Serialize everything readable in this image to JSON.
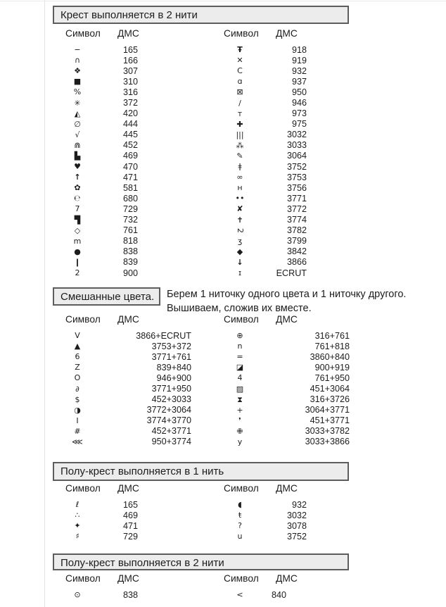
{
  "page": {
    "kind": "cross-stitch pattern color key",
    "colors": {
      "header_bg": "#ececec",
      "header_border": "#5d5d5d",
      "text": "#1c1c1c"
    }
  },
  "sections": [
    {
      "id": "cross-2-threads",
      "title": "Крест выполняется в 2 нити",
      "col_header": {
        "symbol": "Символ",
        "dmc": "ДМС"
      },
      "tables": [
        {
          "rows": [
            {
              "sym": "−",
              "dmc": "165"
            },
            {
              "sym": "∩",
              "dmc": "166"
            },
            {
              "sym": "❖",
              "dmc": "307"
            },
            {
              "sym": "■",
              "dmc": "310"
            },
            {
              "sym": "%",
              "dmc": "316"
            },
            {
              "sym": "✳",
              "dmc": "372"
            },
            {
              "sym": "◭",
              "dmc": "420"
            },
            {
              "sym": "∅",
              "dmc": "444"
            },
            {
              "sym": "√",
              "dmc": "445"
            },
            {
              "sym": "⋒",
              "dmc": "452"
            },
            {
              "sym": "▙",
              "dmc": "469"
            },
            {
              "sym": "♥",
              "dmc": "470"
            },
            {
              "sym": "↑",
              "dmc": "471",
              "b": 1
            },
            {
              "sym": "✿",
              "dmc": "581"
            },
            {
              "sym": "℮",
              "dmc": "680"
            },
            {
              "sym": "7",
              "dmc": "729"
            },
            {
              "sym": "▜",
              "dmc": "732"
            },
            {
              "sym": "◇",
              "dmc": "761"
            },
            {
              "sym": "m",
              "dmc": "818"
            },
            {
              "sym": "●",
              "dmc": "838"
            },
            {
              "sym": "❙",
              "dmc": "839"
            },
            {
              "sym": "2",
              "dmc": "900"
            }
          ]
        },
        {
          "rows": [
            {
              "sym": "Ŧ",
              "dmc": "918",
              "b": 1
            },
            {
              "sym": "✕",
              "dmc": "919"
            },
            {
              "sym": "C",
              "dmc": "932"
            },
            {
              "sym": "ɑ",
              "dmc": "937"
            },
            {
              "sym": "⊠",
              "dmc": "950"
            },
            {
              "sym": "/",
              "dmc": "946"
            },
            {
              "sym": "т",
              "dmc": "973"
            },
            {
              "sym": "✚",
              "dmc": "975"
            },
            {
              "sym": "|||",
              "dmc": "3032"
            },
            {
              "sym": "⁂",
              "dmc": "3033"
            },
            {
              "sym": "✎",
              "dmc": "3064"
            },
            {
              "sym": "ǂ",
              "dmc": "3752"
            },
            {
              "sym": "∞",
              "dmc": "3753"
            },
            {
              "sym": "н",
              "dmc": "3756"
            },
            {
              "sym": "••",
              "dmc": "3771"
            },
            {
              "sym": "✘",
              "dmc": "3772"
            },
            {
              "sym": "✝",
              "dmc": "3774",
              "b": 1
            },
            {
              "sym": "2",
              "dmc": "3782",
              "rot": 1
            },
            {
              "sym": "ʒ",
              "dmc": "3799"
            },
            {
              "sym": "◆",
              "dmc": "3842"
            },
            {
              "sym": "↓",
              "dmc": "3866",
              "b": 1
            },
            {
              "sym": "ɪ",
              "dmc": "ECRUT"
            }
          ]
        }
      ]
    },
    {
      "id": "mixed-colors",
      "title": "Смешанные цвета.",
      "note_lines": [
        "Берем 1 ниточку одного цвета и 1 ниточку другого.",
        "Вышиваем, сложив их вместе."
      ],
      "col_header": {
        "symbol": "Символ",
        "dmc": "ДМС"
      },
      "tables": [
        {
          "rows": [
            {
              "sym": "V",
              "dmc": "3866+ECRUT"
            },
            {
              "sym": "▲",
              "dmc": "3753+372"
            },
            {
              "sym": "6",
              "dmc": "3771+761"
            },
            {
              "sym": "Z",
              "dmc": "839+840"
            },
            {
              "sym": "O",
              "dmc": "946+900"
            },
            {
              "sym": "∂",
              "dmc": "3771+950"
            },
            {
              "sym": "$",
              "dmc": "452+3033"
            },
            {
              "sym": "◑",
              "dmc": "3772+3064"
            },
            {
              "sym": "I",
              "dmc": "3774+3770"
            },
            {
              "sym": "#",
              "dmc": "452+3771"
            },
            {
              "sym": "⋘",
              "dmc": "950+3774"
            }
          ]
        },
        {
          "rows": [
            {
              "sym": "⊕",
              "dmc": "316+761"
            },
            {
              "sym": "n",
              "dmc": "761+818"
            },
            {
              "sym": "=",
              "dmc": "3860+840"
            },
            {
              "sym": "◪",
              "dmc": "900+919"
            },
            {
              "sym": "4",
              "dmc": "761+950"
            },
            {
              "sym": "▨",
              "dmc": "451+3064"
            },
            {
              "sym": "⧗",
              "dmc": "316+3726"
            },
            {
              "sym": "+",
              "dmc": "3064+3771"
            },
            {
              "sym": "❜",
              "dmc": "451+3771"
            },
            {
              "sym": "✙",
              "dmc": "3033+3782"
            },
            {
              "sym": "y",
              "dmc": "3033+3866"
            }
          ]
        }
      ]
    },
    {
      "id": "half-cross-1-thread",
      "title": "Полу-крест выполняется в 1 нить",
      "col_header": {
        "symbol": "Символ",
        "dmc": "ДМС"
      },
      "tables": [
        {
          "rows": [
            {
              "sym": "ℓ",
              "dmc": "165"
            },
            {
              "sym": "∴",
              "dmc": "469"
            },
            {
              "sym": "✦",
              "dmc": "471"
            },
            {
              "sym": "♯",
              "dmc": "729"
            }
          ]
        },
        {
          "rows": [
            {
              "sym": "◖",
              "dmc": "932"
            },
            {
              "sym": "ŧ",
              "dmc": "3032"
            },
            {
              "sym": "?",
              "dmc": "3078"
            },
            {
              "sym": "u",
              "dmc": "3752"
            }
          ]
        }
      ]
    },
    {
      "id": "half-cross-2-threads",
      "title": "Полу-крест выполняется в 2 нити",
      "col_header": {
        "symbol": "Символ",
        "dmc": "ДМС"
      },
      "tables": [
        {
          "rows": [
            {
              "sym": "⊙",
              "dmc": "838"
            }
          ]
        },
        {
          "rows": [
            {
              "sym": "<",
              "dmc": "840"
            }
          ]
        }
      ]
    }
  ]
}
